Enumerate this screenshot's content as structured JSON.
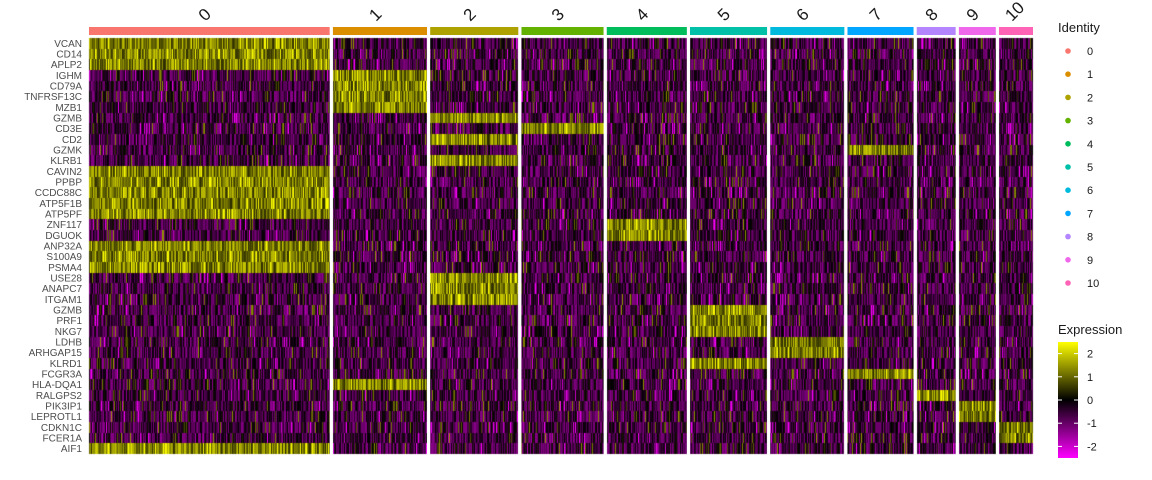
{
  "chart_data": {
    "type": "heatmap",
    "clusters": [
      {
        "id": "0",
        "cells": 240,
        "color": "#F8766D"
      },
      {
        "id": "1",
        "cells": 94,
        "color": "#DB8E00"
      },
      {
        "id": "2",
        "cells": 88,
        "color": "#AEA200"
      },
      {
        "id": "3",
        "cells": 82,
        "color": "#64B200"
      },
      {
        "id": "4",
        "cells": 80,
        "color": "#00BD5C"
      },
      {
        "id": "5",
        "cells": 77,
        "color": "#00C1A7"
      },
      {
        "id": "6",
        "cells": 74,
        "color": "#00BADE"
      },
      {
        "id": "7",
        "cells": 66,
        "color": "#00A6FF"
      },
      {
        "id": "8",
        "cells": 39,
        "color": "#B385FF"
      },
      {
        "id": "9",
        "cells": 37,
        "color": "#EF67EB"
      },
      {
        "id": "10",
        "cells": 34,
        "color": "#FF63B6"
      }
    ],
    "genes": [
      "VCAN",
      "CD14",
      "APLP2",
      "IGHM",
      "CD79A",
      "TNFRSF13C",
      "MZB1",
      "GZMB",
      "CD3E",
      "CD2",
      "GZMK",
      "KLRB1",
      "CAVIN2",
      "PPBP",
      "CCDC88C",
      "ATP5F1B",
      "ATP5PF",
      "ZNF117",
      "DGUOK",
      "ANP32A",
      "S100A9",
      "PSMA4",
      "USE28",
      "ANAPC7",
      "ITGAM1",
      "GZMB",
      "PRF1",
      "NKG7",
      "LDHB",
      "ARHGAP15",
      "KLRD1",
      "FCGR3A",
      "HLA-DQA1",
      "RALGPS2",
      "PIK3IP1",
      "LEPROTL1",
      "CDKN1C",
      "FCER1A",
      "AIF1"
    ],
    "gene_cluster_map": [
      0,
      0,
      0,
      1,
      1,
      1,
      1,
      2,
      3,
      2,
      7,
      2,
      0,
      0,
      0,
      0,
      0,
      4,
      4,
      0,
      0,
      0,
      2,
      2,
      2,
      5,
      5,
      5,
      6,
      6,
      5,
      7,
      1,
      8,
      9,
      9,
      10,
      10,
      0
    ],
    "legend": {
      "identity_title": "Identity",
      "expression_title": "Expression",
      "expression_ticks": [
        2,
        1,
        0,
        -1,
        -2
      ],
      "expression_range": [
        -2.5,
        2.5
      ],
      "colormap": [
        "#FF00FF",
        "#000000",
        "#FFFF00"
      ]
    }
  }
}
